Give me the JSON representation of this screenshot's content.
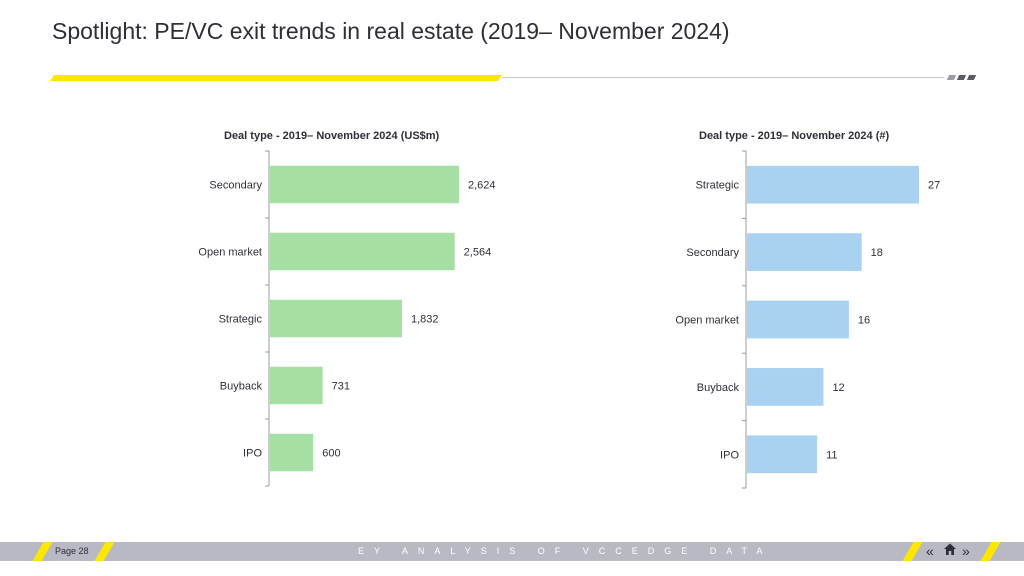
{
  "page": {
    "title": "Spotlight: PE/VC exit trends in real estate (2019– November 2024)",
    "page_label": "Page 28",
    "footer_text": "EY ANALYSIS OF VCCEDGE DATA"
  },
  "colors": {
    "accent_yellow": "#ffe600",
    "green_bar": "#a5dfa3",
    "blue_bar": "#a9d2f0",
    "footer_grey": "#b9b9c3"
  },
  "icons": {
    "prev": "chevron-left-double-icon",
    "home": "home-icon",
    "next": "chevron-right-double-icon"
  },
  "chart_data": [
    {
      "type": "bar",
      "orientation": "horizontal",
      "title": "Deal type - 2019– November 2024 (US$m)",
      "categories": [
        "Secondary",
        "Open market",
        "Strategic",
        "Buyback",
        "IPO"
      ],
      "values": [
        2624,
        2564,
        1832,
        731,
        600
      ],
      "value_labels": [
        "2,624",
        "2,564",
        "1,832",
        "731",
        "600"
      ],
      "xlim": [
        0,
        2624
      ],
      "color": "#a5dfa3",
      "grid": false,
      "legend": "none"
    },
    {
      "type": "bar",
      "orientation": "horizontal",
      "title": "Deal type - 2019– November 2024 (#)",
      "categories": [
        "Strategic",
        "Secondary",
        "Open market",
        "Buyback",
        "IPO"
      ],
      "values": [
        27,
        18,
        16,
        12,
        11
      ],
      "value_labels": [
        "27",
        "18",
        "16",
        "12",
        "11"
      ],
      "xlim": [
        0,
        27
      ],
      "color": "#a9d2f0",
      "grid": false,
      "legend": "none"
    }
  ]
}
